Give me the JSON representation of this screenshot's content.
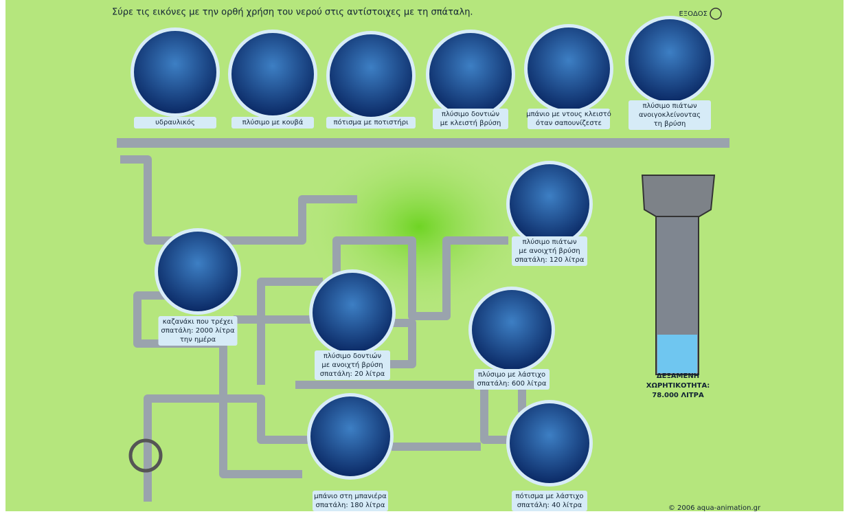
{
  "header": {
    "instruction": "Σύρε τις εικόνες με την ορθή χρήση του νερού στις αντίστοιχες με τη σπάταλη.",
    "exit": "ΕΞΟΔΟΣ"
  },
  "good_cards": [
    {
      "lines": [
        "υδραυλικός"
      ]
    },
    {
      "lines": [
        "πλύσιμο με κουβά"
      ]
    },
    {
      "lines": [
        "πότισμα με ποτιστήρι"
      ]
    },
    {
      "lines": [
        "πλύσιμο δοντιών",
        "με κλειστή βρύση"
      ]
    },
    {
      "lines": [
        "μπάνιο με ντους κλειστό",
        "όταν σαπουνίζεστε"
      ]
    },
    {
      "lines": [
        "πλύσιμο πιάτων",
        "ανοιγοκλείνοντας",
        "τη βρύση"
      ]
    }
  ],
  "waste_cards": [
    {
      "lines": [
        "πλύσιμο πιάτων",
        "με ανοιχτή βρύση",
        "σπατάλη: 120 λίτρα"
      ]
    },
    {
      "lines": [
        "καζανάκι που τρέχει",
        "σπατάλη: 2000 λίτρα",
        "την ημέρα"
      ]
    },
    {
      "lines": [
        "πλύσιμο δοντιών",
        "με ανοιχτή βρύση",
        "σπατάλη: 20 λίτρα"
      ]
    },
    {
      "lines": [
        "πλύσιμο με λάστιχο",
        "σπατάλη: 600 λίτρα"
      ]
    },
    {
      "lines": [
        "μπάνιο στη μπανιέρα",
        "σπατάλη: 180 λίτρα"
      ]
    },
    {
      "lines": [
        "πότισμα με λάστιχο",
        "σπατάλη: 40 λίτρα"
      ]
    }
  ],
  "tank": {
    "lines": [
      "ΔΕΞΑΜΕΝΗ",
      "ΧΩΡΗΤΙΚΟΤΗΤΑ:",
      "78.000 ΛΙΤΡΑ"
    ]
  },
  "footer": {
    "copyright": "© 2006 aqua-animation.gr"
  }
}
